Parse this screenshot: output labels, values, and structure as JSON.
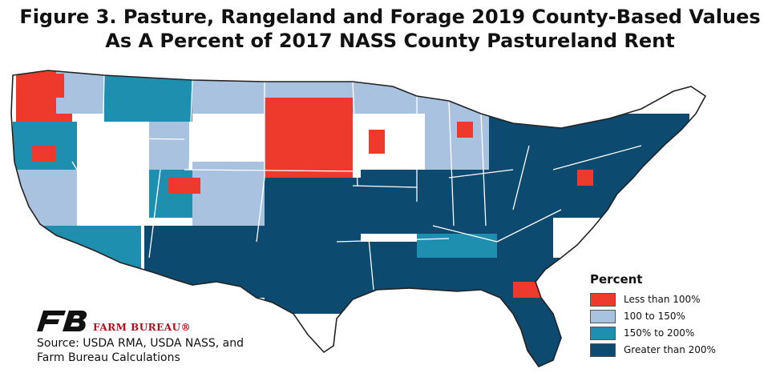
{
  "title": {
    "line1": "Figure 3. Pasture, Rangeland and Forage 2019 County-Based Values",
    "line2": "As A Percent of 2017 NASS County Pastureland Rent"
  },
  "legend": {
    "title": "Percent",
    "items": [
      {
        "label": "Less than 100%",
        "color": "#ee3a2d"
      },
      {
        "label": "100 to 150%",
        "color": "#a9c2e0"
      },
      {
        "label": "150% to 200%",
        "color": "#1f8fb0"
      },
      {
        "label": "Greater than 200%",
        "color": "#0d4a70"
      }
    ]
  },
  "logo": {
    "brand": "FARM BUREAU®",
    "icon": "farm-bureau-logo-icon"
  },
  "source": {
    "line1": "Source: USDA RMA, USDA NASS, and",
    "line2": "Farm Bureau Calculations"
  },
  "map_colors": {
    "no_data": "#ffffff",
    "border": "#222222"
  }
}
